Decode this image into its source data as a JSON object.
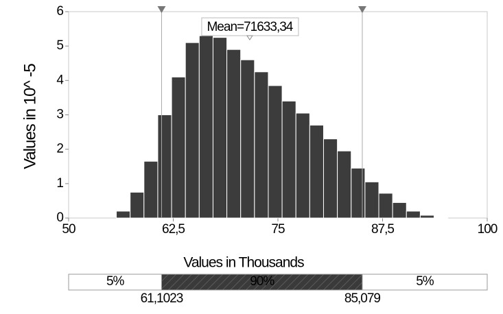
{
  "chart_data": {
    "type": "histogram",
    "bins": [
      55.7,
      57.35,
      59.0,
      60.65,
      62.3,
      63.95,
      65.6,
      67.25,
      68.9,
      70.55,
      72.2,
      73.85,
      75.5,
      77.15,
      78.8,
      80.45,
      82.1,
      83.75,
      85.4,
      87.05,
      88.7,
      90.35,
      92.0,
      93.65,
      95.3
    ],
    "counts": [
      0.2,
      0.75,
      1.65,
      3.0,
      4.1,
      5.1,
      5.3,
      5.25,
      4.9,
      4.6,
      4.25,
      3.85,
      3.4,
      3.05,
      2.7,
      2.3,
      1.95,
      1.45,
      1.05,
      0.72,
      0.45,
      0.2,
      0.08,
      0.02
    ],
    "color": "#3c3c3c",
    "xlim": [
      50,
      100
    ],
    "xticks": [
      50,
      {
        "value": 62.5,
        "label": "62,5"
      },
      75,
      {
        "value": 87.5,
        "label": "87,5"
      },
      100
    ],
    "ylim": [
      0,
      6
    ],
    "yticks": [
      0,
      1,
      2,
      3,
      4,
      5,
      6
    ],
    "xlabel": "Values in Thousands",
    "ylabel": "Values in 10^ -5",
    "mean": {
      "value": 71.63334,
      "label": "Mean=71633,34"
    },
    "delimiters": [
      {
        "value": 61.1023,
        "label": "61,1023"
      },
      {
        "value": 85.079,
        "label": "85,079"
      }
    ],
    "percentages": [
      {
        "value": 5,
        "label": "5%"
      },
      {
        "value": 90,
        "label": "90%"
      },
      {
        "value": 5,
        "label": "5%"
      }
    ]
  }
}
